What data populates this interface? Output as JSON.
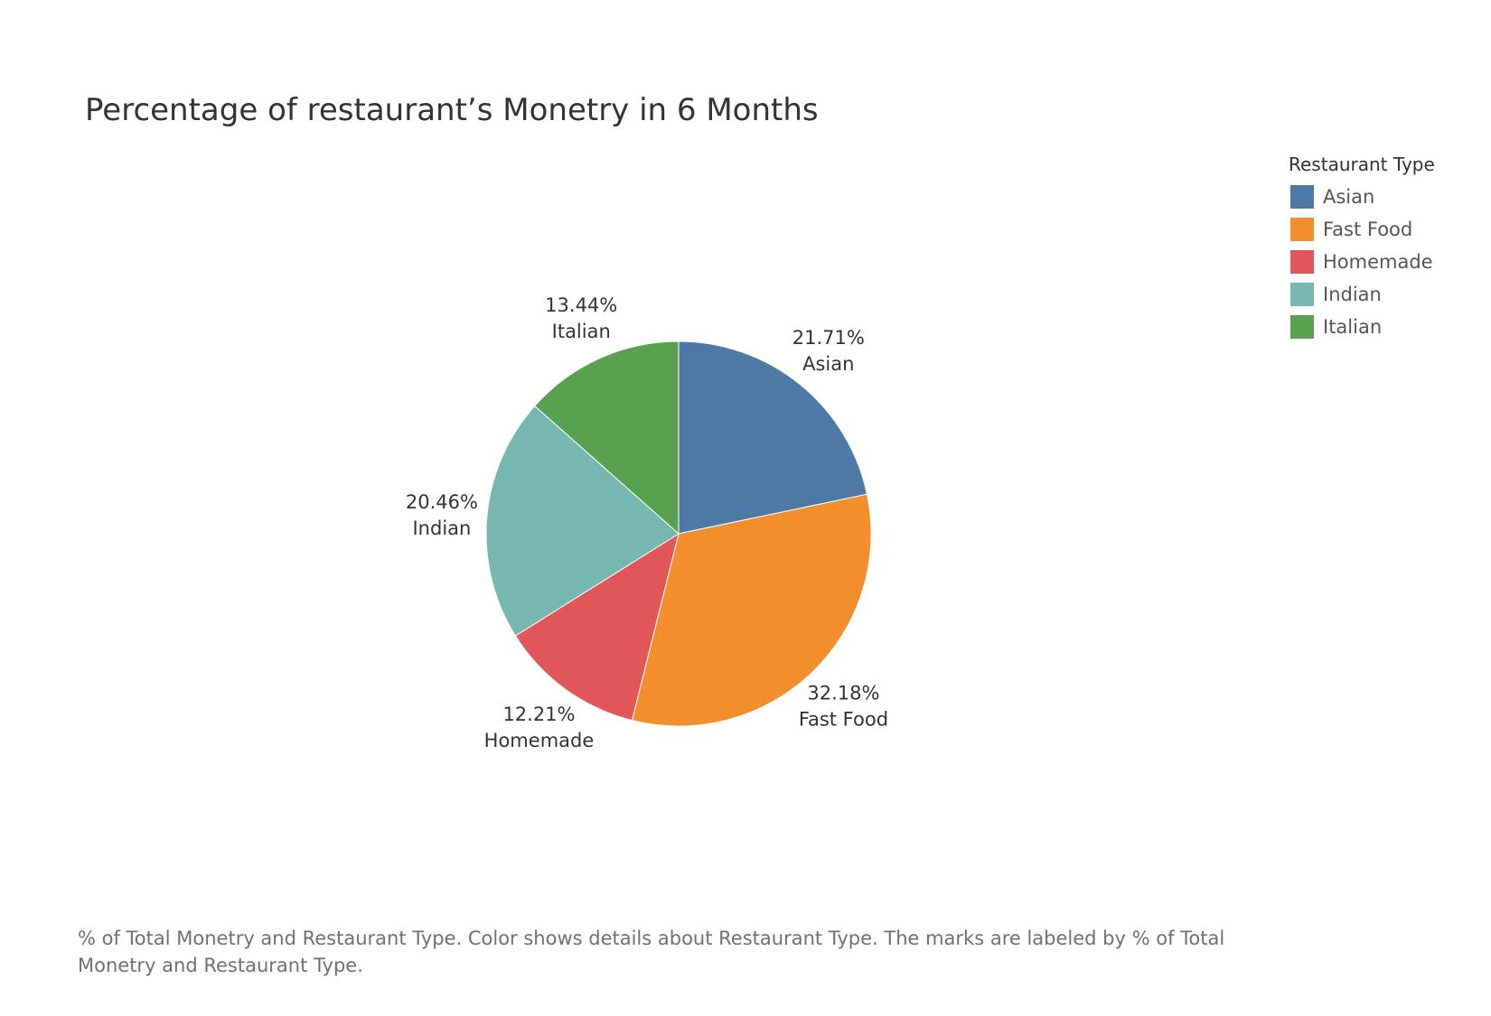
{
  "title": "Percentage of restaurant’s Monetry in 6 Months",
  "legend": {
    "title": "Restaurant Type",
    "items": [
      {
        "label": "Asian",
        "color": "#4E79A7"
      },
      {
        "label": "Fast Food",
        "color": "#F28E2B"
      },
      {
        "label": "Homemade",
        "color": "#E15759"
      },
      {
        "label": "Indian",
        "color": "#76B7B2"
      },
      {
        "label": "Italian",
        "color": "#59A14F"
      }
    ]
  },
  "caption": "% of Total Monetry and Restaurant Type.  Color shows details about Restaurant Type.  The marks are labeled by % of Total Monetry and Restaurant Type.",
  "chart_data": {
    "type": "pie",
    "title": "Percentage of restaurant’s Monetry in 6 Months",
    "legend_position": "top-right",
    "slices": [
      {
        "label": "Asian",
        "value": 21.71,
        "value_label": "21.71%",
        "color": "#4E79A7"
      },
      {
        "label": "Fast Food",
        "value": 32.18,
        "value_label": "32.18%",
        "color": "#F28E2B"
      },
      {
        "label": "Homemade",
        "value": 12.21,
        "value_label": "12.21%",
        "color": "#E15759"
      },
      {
        "label": "Indian",
        "value": 20.46,
        "value_label": "20.46%",
        "color": "#76B7B2"
      },
      {
        "label": "Italian",
        "value": 13.44,
        "value_label": "13.44%",
        "color": "#59A14F"
      }
    ]
  }
}
